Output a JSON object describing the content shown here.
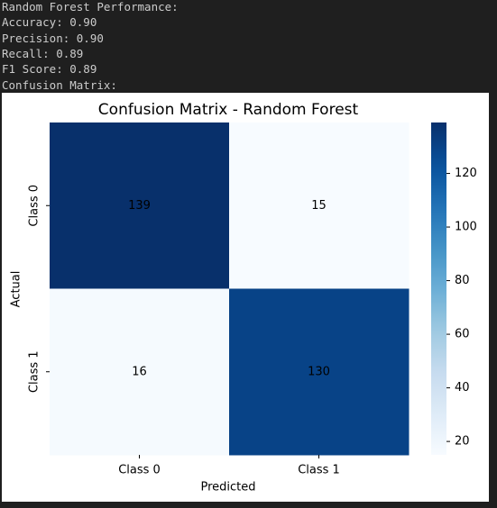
{
  "output_lines": [
    "Random Forest Performance:",
    "Accuracy: 0.90",
    "Precision: 0.90",
    "Recall: 0.89",
    "F1 Score: 0.89",
    "Confusion Matrix:"
  ],
  "chart_data": {
    "type": "heatmap",
    "title": "Confusion Matrix - Random Forest",
    "x_label": "Predicted",
    "y_label": "Actual",
    "x_categories": [
      "Class 0",
      "Class 1"
    ],
    "y_categories": [
      "Class 0",
      "Class 1"
    ],
    "values": [
      [
        139,
        15
      ],
      [
        16,
        130
      ]
    ],
    "colormap": "Blues",
    "clim": [
      15,
      139
    ],
    "cticks": [
      20,
      40,
      60,
      80,
      100,
      120
    ]
  }
}
